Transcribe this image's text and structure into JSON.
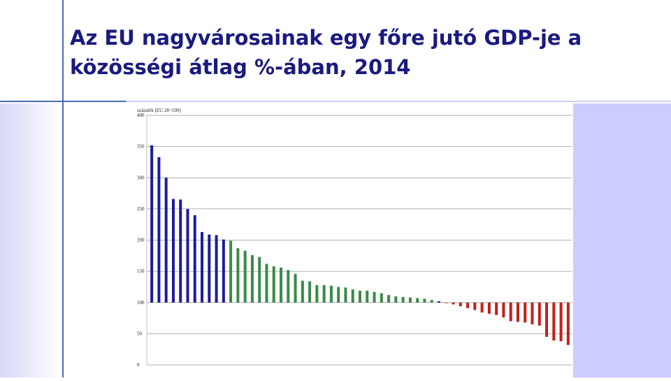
{
  "slide": {
    "title_line1": "Az EU nagyvárosainak egy főre jutó GDP-je a",
    "title_line2": "közösségi átlag %-ában, 2014"
  },
  "chart_data": {
    "type": "bar",
    "y_axis_label": "százalék (EU 28=100)",
    "categories": [
      null,
      null,
      null,
      null,
      null,
      null,
      null,
      null,
      null,
      null,
      null,
      null,
      null,
      null,
      null,
      null,
      null,
      null,
      null,
      null,
      null,
      null,
      null,
      null,
      null,
      null,
      null,
      null,
      null,
      null,
      null,
      null,
      null,
      null,
      null,
      null,
      null,
      null,
      null,
      null,
      null,
      null,
      null,
      null,
      null,
      null,
      null,
      null,
      null,
      null,
      null,
      null,
      null,
      null,
      null,
      null,
      null,
      null,
      null
    ],
    "values": [
      352,
      333,
      300,
      266,
      265,
      250,
      240,
      213,
      209,
      208,
      201,
      199,
      187,
      183,
      176,
      173,
      162,
      158,
      156,
      152,
      146,
      135,
      134,
      128,
      128,
      127,
      125,
      124,
      121,
      119,
      119,
      117,
      115,
      112,
      110,
      109,
      108,
      107,
      106,
      104,
      102,
      99,
      97,
      94,
      91,
      88,
      84,
      82,
      80,
      76,
      70,
      69,
      68,
      65,
      63,
      45,
      39,
      38,
      32
    ],
    "colors": [
      "#1c1ca0",
      "#1c1ca0",
      "#1c1ca0",
      "#1c1ca0",
      "#1c1ca0",
      "#1c1ca0",
      "#1c1ca0",
      "#1c1ca0",
      "#1c1ca0",
      "#1c1ca0",
      "#1c1ca0",
      "#3a8a4a",
      "#3a8a4a",
      "#3a8a4a",
      "#3a8a4a",
      "#3a8a4a",
      "#3a8a4a",
      "#3a8a4a",
      "#3a8a4a",
      "#3a8a4a",
      "#3a8a4a",
      "#3a8a4a",
      "#3a8a4a",
      "#3a8a4a",
      "#3a8a4a",
      "#3a8a4a",
      "#3a8a4a",
      "#3a8a4a",
      "#3a8a4a",
      "#3a8a4a",
      "#3a8a4a",
      "#3a8a4a",
      "#3a8a4a",
      "#3a8a4a",
      "#3a8a4a",
      "#3a8a4a",
      "#3a8a4a",
      "#3a8a4a",
      "#3a8a4a",
      "#3a8a4a",
      "#202060",
      "#c0201c",
      "#c0201c",
      "#c0201c",
      "#c0201c",
      "#c0201c",
      "#c0201c",
      "#c0201c",
      "#c0201c",
      "#c0201c",
      "#c0201c",
      "#c0201c",
      "#c0201c",
      "#c0201c",
      "#c0201c",
      "#c0201c",
      "#c0201c",
      "#c0201c",
      "#c0201c"
    ],
    "bar_base": 100,
    "ylim": [
      0,
      400
    ],
    "yticks": [
      0,
      50,
      100,
      150,
      200,
      250,
      300,
      350,
      400
    ],
    "grid": true
  }
}
